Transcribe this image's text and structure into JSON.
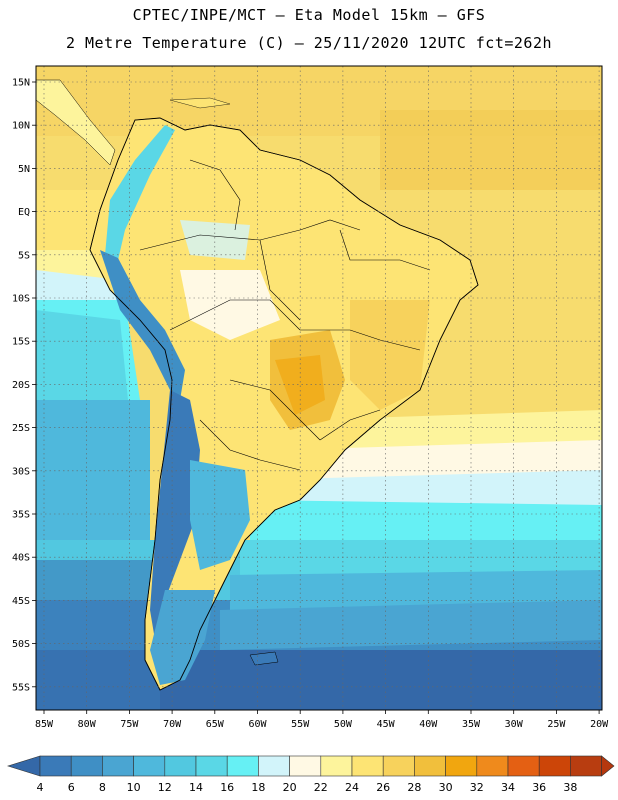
{
  "title": {
    "line1": "CPTEC/INPE/MCT –  Eta Model 15km – GFS",
    "line2": "2 Metre Temperature (C) – 25/11/2020 12UTC fct=262h"
  },
  "map": {
    "lat_labels": [
      "15N",
      "10N",
      "5N",
      "EQ",
      "5S",
      "10S",
      "15S",
      "20S",
      "25S",
      "30S",
      "35S",
      "40S",
      "45S",
      "50S",
      "55S"
    ],
    "lon_labels": [
      "85W",
      "80W",
      "75W",
      "70W",
      "65W",
      "60W",
      "55W",
      "50W",
      "45W",
      "40W",
      "35W",
      "30W",
      "25W",
      "20W"
    ],
    "ocean_color": "#f5d86a",
    "grid_style": "dotted"
  },
  "colorbar": {
    "labels": [
      "4",
      "6",
      "8",
      "10",
      "12",
      "14",
      "16",
      "18",
      "20",
      "22",
      "24",
      "26",
      "28",
      "30",
      "32",
      "34",
      "36",
      "38"
    ],
    "colors": [
      "#3a7ab8",
      "#3f8fc5",
      "#4aa5d2",
      "#4fb8dc",
      "#52c8e0",
      "#5ad7e6",
      "#66f0f4",
      "#d2f4fa",
      "#fff9e4",
      "#fdf49c",
      "#fde474",
      "#f7d25c",
      "#f1bf3c",
      "#f1a60f",
      "#ef8a1c",
      "#e46013",
      "#cc4508",
      "#b83d10"
    ],
    "under_color": "#3468a8",
    "over_color": "#b5380e"
  }
}
